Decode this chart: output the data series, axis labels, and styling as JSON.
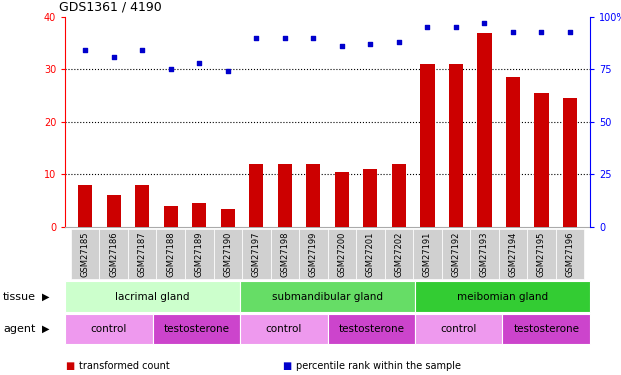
{
  "title": "GDS1361 / 4190",
  "samples": [
    "GSM27185",
    "GSM27186",
    "GSM27187",
    "GSM27188",
    "GSM27189",
    "GSM27190",
    "GSM27197",
    "GSM27198",
    "GSM27199",
    "GSM27200",
    "GSM27201",
    "GSM27202",
    "GSM27191",
    "GSM27192",
    "GSM27193",
    "GSM27194",
    "GSM27195",
    "GSM27196"
  ],
  "bar_values": [
    8,
    6,
    8,
    4,
    4.5,
    3.5,
    12,
    12,
    12,
    10.5,
    11,
    12,
    31,
    31,
    37,
    28.5,
    25.5,
    24.5
  ],
  "dot_values": [
    84,
    81,
    84,
    75,
    78,
    74,
    90,
    90,
    90,
    86,
    87,
    88,
    95,
    95,
    97,
    93,
    93,
    93
  ],
  "bar_color": "#cc0000",
  "dot_color": "#0000cc",
  "ylim_left": [
    0,
    40
  ],
  "ylim_right": [
    0,
    100
  ],
  "yticks_left": [
    0,
    10,
    20,
    30,
    40
  ],
  "yticks_right": [
    0,
    25,
    50,
    75,
    100
  ],
  "ytick_labels_right": [
    "0",
    "25",
    "50",
    "75",
    "100%"
  ],
  "tissue_groups": [
    {
      "label": "lacrimal gland",
      "start": 0,
      "end": 6,
      "color": "#ccffcc"
    },
    {
      "label": "submandibular gland",
      "start": 6,
      "end": 12,
      "color": "#66dd66"
    },
    {
      "label": "meibomian gland",
      "start": 12,
      "end": 18,
      "color": "#33cc33"
    }
  ],
  "agent_groups": [
    {
      "label": "control",
      "start": 0,
      "end": 3,
      "color": "#ee99ee"
    },
    {
      "label": "testosterone",
      "start": 3,
      "end": 6,
      "color": "#cc44cc"
    },
    {
      "label": "control",
      "start": 6,
      "end": 9,
      "color": "#ee99ee"
    },
    {
      "label": "testosterone",
      "start": 9,
      "end": 12,
      "color": "#cc44cc"
    },
    {
      "label": "control",
      "start": 12,
      "end": 15,
      "color": "#ee99ee"
    },
    {
      "label": "testosterone",
      "start": 15,
      "end": 18,
      "color": "#cc44cc"
    }
  ],
  "legend_items": [
    {
      "label": "transformed count",
      "color": "#cc0000"
    },
    {
      "label": "percentile rank within the sample",
      "color": "#0000cc"
    }
  ],
  "tissue_label": "tissue",
  "agent_label": "agent",
  "bg_color": "#ffffff",
  "tick_bg_color": "#d0d0d0",
  "bar_width": 0.5
}
